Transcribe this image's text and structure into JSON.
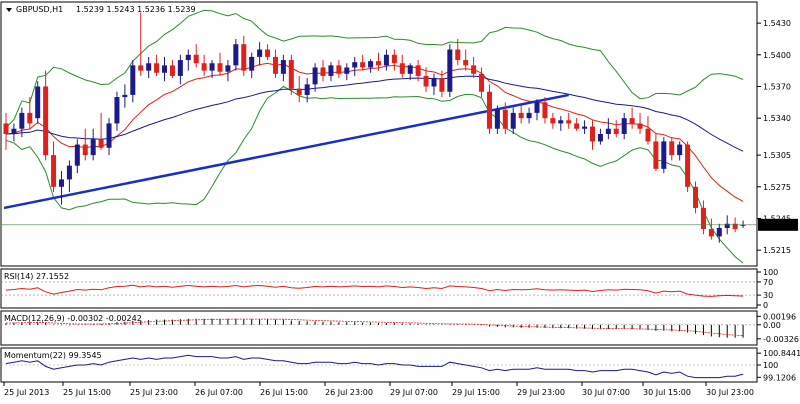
{
  "chart_data": [
    {
      "type": "candlestick",
      "title": "GBPUSD,H1",
      "ohlc_readout": [
        "1.5239",
        "1.5243",
        "1.5236",
        "1.5239"
      ],
      "y_ticks": [
        "1.5430",
        "1.5400",
        "1.5370",
        "1.5340",
        "1.5305",
        "1.5275",
        "1.5245",
        "1.5215"
      ],
      "ylim": [
        1.52,
        1.545
      ],
      "current_price": 1.5239,
      "current_price_label": "1.5239",
      "colors": {
        "up": "#1a1a8c",
        "down": "#e0201a",
        "bands": "#2e8b2e",
        "ma_red": "#e0201a",
        "ma_blue": "#1a1a8c",
        "trendline": "#1a2ec8",
        "price_line": "#4a7a4a"
      },
      "candles": [
        {
          "o": 1.5335,
          "h": 1.5345,
          "l": 1.531,
          "c": 1.5325
        },
        {
          "o": 1.5325,
          "h": 1.5335,
          "l": 1.5318,
          "c": 1.533
        },
        {
          "o": 1.533,
          "h": 1.535,
          "l": 1.5322,
          "c": 1.5345
        },
        {
          "o": 1.5345,
          "h": 1.536,
          "l": 1.533,
          "c": 1.5335
        },
        {
          "o": 1.534,
          "h": 1.5375,
          "l": 1.5335,
          "c": 1.537
        },
        {
          "o": 1.537,
          "h": 1.5385,
          "l": 1.53,
          "c": 1.5305
        },
        {
          "o": 1.5305,
          "h": 1.5318,
          "l": 1.527,
          "c": 1.5275
        },
        {
          "o": 1.5275,
          "h": 1.529,
          "l": 1.5258,
          "c": 1.5282
        },
        {
          "o": 1.5282,
          "h": 1.53,
          "l": 1.527,
          "c": 1.5295
        },
        {
          "o": 1.5295,
          "h": 1.532,
          "l": 1.5288,
          "c": 1.5315
        },
        {
          "o": 1.5315,
          "h": 1.533,
          "l": 1.53,
          "c": 1.5305
        },
        {
          "o": 1.5305,
          "h": 1.533,
          "l": 1.53,
          "c": 1.532
        },
        {
          "o": 1.532,
          "h": 1.5345,
          "l": 1.531,
          "c": 1.5312
        },
        {
          "o": 1.5312,
          "h": 1.534,
          "l": 1.5305,
          "c": 1.5335
        },
        {
          "o": 1.5335,
          "h": 1.5365,
          "l": 1.5328,
          "c": 1.536
        },
        {
          "o": 1.536,
          "h": 1.5372,
          "l": 1.535,
          "c": 1.5362
        },
        {
          "o": 1.5362,
          "h": 1.5395,
          "l": 1.5355,
          "c": 1.539
        },
        {
          "o": 1.539,
          "h": 1.544,
          "l": 1.538,
          "c": 1.5385
        },
        {
          "o": 1.5385,
          "h": 1.5398,
          "l": 1.5378,
          "c": 1.5392
        },
        {
          "o": 1.5392,
          "h": 1.54,
          "l": 1.538,
          "c": 1.5383
        },
        {
          "o": 1.5383,
          "h": 1.5398,
          "l": 1.5375,
          "c": 1.539
        },
        {
          "o": 1.539,
          "h": 1.5395,
          "l": 1.5378,
          "c": 1.538
        },
        {
          "o": 1.538,
          "h": 1.54,
          "l": 1.5372,
          "c": 1.5395
        },
        {
          "o": 1.5395,
          "h": 1.5405,
          "l": 1.5385,
          "c": 1.54
        },
        {
          "o": 1.54,
          "h": 1.541,
          "l": 1.5388,
          "c": 1.5392
        },
        {
          "o": 1.5392,
          "h": 1.54,
          "l": 1.538,
          "c": 1.5385
        },
        {
          "o": 1.5385,
          "h": 1.5395,
          "l": 1.5378,
          "c": 1.5392
        },
        {
          "o": 1.5392,
          "h": 1.5402,
          "l": 1.538,
          "c": 1.5384
        },
        {
          "o": 1.5384,
          "h": 1.5395,
          "l": 1.5375,
          "c": 1.539
        },
        {
          "o": 1.539,
          "h": 1.5415,
          "l": 1.5385,
          "c": 1.541
        },
        {
          "o": 1.541,
          "h": 1.5418,
          "l": 1.538,
          "c": 1.5385
        },
        {
          "o": 1.5385,
          "h": 1.5402,
          "l": 1.5378,
          "c": 1.5398
        },
        {
          "o": 1.5398,
          "h": 1.5412,
          "l": 1.539,
          "c": 1.5405
        },
        {
          "o": 1.5405,
          "h": 1.541,
          "l": 1.5395,
          "c": 1.5398
        },
        {
          "o": 1.5398,
          "h": 1.5405,
          "l": 1.5378,
          "c": 1.5382
        },
        {
          "o": 1.5382,
          "h": 1.54,
          "l": 1.5375,
          "c": 1.5395
        },
        {
          "o": 1.5395,
          "h": 1.54,
          "l": 1.5362,
          "c": 1.5368
        },
        {
          "o": 1.5368,
          "h": 1.538,
          "l": 1.5355,
          "c": 1.5362
        },
        {
          "o": 1.5362,
          "h": 1.5378,
          "l": 1.5355,
          "c": 1.5372
        },
        {
          "o": 1.5372,
          "h": 1.5392,
          "l": 1.5365,
          "c": 1.5388
        },
        {
          "o": 1.5388,
          "h": 1.5395,
          "l": 1.5375,
          "c": 1.538
        },
        {
          "o": 1.538,
          "h": 1.5393,
          "l": 1.5375,
          "c": 1.539
        },
        {
          "o": 1.539,
          "h": 1.5395,
          "l": 1.5378,
          "c": 1.5382
        },
        {
          "o": 1.5382,
          "h": 1.5392,
          "l": 1.5376,
          "c": 1.5388
        },
        {
          "o": 1.5388,
          "h": 1.5398,
          "l": 1.538,
          "c": 1.5393
        },
        {
          "o": 1.5393,
          "h": 1.54,
          "l": 1.5385,
          "c": 1.5388
        },
        {
          "o": 1.5388,
          "h": 1.5396,
          "l": 1.5383,
          "c": 1.5394
        },
        {
          "o": 1.5394,
          "h": 1.5402,
          "l": 1.5385,
          "c": 1.539
        },
        {
          "o": 1.539,
          "h": 1.5405,
          "l": 1.5385,
          "c": 1.54
        },
        {
          "o": 1.54,
          "h": 1.5405,
          "l": 1.5385,
          "c": 1.5392
        },
        {
          "o": 1.5392,
          "h": 1.54,
          "l": 1.5378,
          "c": 1.5382
        },
        {
          "o": 1.5382,
          "h": 1.5392,
          "l": 1.5376,
          "c": 1.539
        },
        {
          "o": 1.539,
          "h": 1.5395,
          "l": 1.5375,
          "c": 1.538
        },
        {
          "o": 1.538,
          "h": 1.5388,
          "l": 1.5365,
          "c": 1.537
        },
        {
          "o": 1.537,
          "h": 1.5382,
          "l": 1.5362,
          "c": 1.5378
        },
        {
          "o": 1.5378,
          "h": 1.5385,
          "l": 1.536,
          "c": 1.5365
        },
        {
          "o": 1.5365,
          "h": 1.541,
          "l": 1.536,
          "c": 1.5405
        },
        {
          "o": 1.5405,
          "h": 1.5415,
          "l": 1.539,
          "c": 1.5395
        },
        {
          "o": 1.5395,
          "h": 1.5405,
          "l": 1.5385,
          "c": 1.539
        },
        {
          "o": 1.539,
          "h": 1.5398,
          "l": 1.5378,
          "c": 1.5382
        },
        {
          "o": 1.5382,
          "h": 1.5388,
          "l": 1.536,
          "c": 1.5365
        },
        {
          "o": 1.5365,
          "h": 1.5372,
          "l": 1.5325,
          "c": 1.533
        },
        {
          "o": 1.533,
          "h": 1.5352,
          "l": 1.5325,
          "c": 1.5348
        },
        {
          "o": 1.5348,
          "h": 1.5355,
          "l": 1.5325,
          "c": 1.533
        },
        {
          "o": 1.533,
          "h": 1.535,
          "l": 1.5325,
          "c": 1.5345
        },
        {
          "o": 1.5345,
          "h": 1.5352,
          "l": 1.5335,
          "c": 1.534
        },
        {
          "o": 1.534,
          "h": 1.535,
          "l": 1.5335,
          "c": 1.5345
        },
        {
          "o": 1.5345,
          "h": 1.5358,
          "l": 1.5338,
          "c": 1.5355
        },
        {
          "o": 1.5355,
          "h": 1.536,
          "l": 1.5335,
          "c": 1.534
        },
        {
          "o": 1.534,
          "h": 1.5345,
          "l": 1.533,
          "c": 1.5335
        },
        {
          "o": 1.5335,
          "h": 1.5342,
          "l": 1.5328,
          "c": 1.5338
        },
        {
          "o": 1.5338,
          "h": 1.5345,
          "l": 1.533,
          "c": 1.5335
        },
        {
          "o": 1.5335,
          "h": 1.534,
          "l": 1.5328,
          "c": 1.533
        },
        {
          "o": 1.533,
          "h": 1.5338,
          "l": 1.5325,
          "c": 1.5332
        },
        {
          "o": 1.5332,
          "h": 1.5338,
          "l": 1.531,
          "c": 1.5318
        },
        {
          "o": 1.5318,
          "h": 1.533,
          "l": 1.5315,
          "c": 1.5325
        },
        {
          "o": 1.5325,
          "h": 1.534,
          "l": 1.532,
          "c": 1.533
        },
        {
          "o": 1.533,
          "h": 1.5338,
          "l": 1.5322,
          "c": 1.5325
        },
        {
          "o": 1.5325,
          "h": 1.5345,
          "l": 1.532,
          "c": 1.534
        },
        {
          "o": 1.534,
          "h": 1.535,
          "l": 1.533,
          "c": 1.5335
        },
        {
          "o": 1.5335,
          "h": 1.5345,
          "l": 1.5325,
          "c": 1.533
        },
        {
          "o": 1.533,
          "h": 1.5342,
          "l": 1.5315,
          "c": 1.5318
        },
        {
          "o": 1.5318,
          "h": 1.5325,
          "l": 1.529,
          "c": 1.5292
        },
        {
          "o": 1.5292,
          "h": 1.5322,
          "l": 1.5288,
          "c": 1.5318
        },
        {
          "o": 1.5318,
          "h": 1.5322,
          "l": 1.53,
          "c": 1.5305
        },
        {
          "o": 1.5305,
          "h": 1.5318,
          "l": 1.53,
          "c": 1.5315
        },
        {
          "o": 1.5315,
          "h": 1.5318,
          "l": 1.527,
          "c": 1.5275
        },
        {
          "o": 1.5275,
          "h": 1.528,
          "l": 1.525,
          "c": 1.5255
        },
        {
          "o": 1.5255,
          "h": 1.5262,
          "l": 1.523,
          "c": 1.5235
        },
        {
          "o": 1.5235,
          "h": 1.5245,
          "l": 1.5225,
          "c": 1.5228
        },
        {
          "o": 1.5228,
          "h": 1.524,
          "l": 1.5222,
          "c": 1.5236
        },
        {
          "o": 1.5236,
          "h": 1.5248,
          "l": 1.523,
          "c": 1.524
        },
        {
          "o": 1.524,
          "h": 1.5246,
          "l": 1.5232,
          "c": 1.5235
        },
        {
          "o": 1.5239,
          "h": 1.5243,
          "l": 1.5236,
          "c": 1.5239
        }
      ]
    },
    {
      "type": "line",
      "title": "RSI(14) 27.1552",
      "y_ticks": [
        "100",
        "70",
        "30",
        "0"
      ],
      "ylim": [
        0,
        100
      ],
      "values": [
        45,
        47,
        50,
        48,
        52,
        40,
        33,
        38,
        42,
        47,
        45,
        48,
        46,
        52,
        56,
        57,
        60,
        55,
        58,
        55,
        57,
        54,
        57,
        59,
        57,
        55,
        57,
        55,
        56,
        59,
        55,
        58,
        59,
        57,
        54,
        57,
        52,
        51,
        53,
        56,
        55,
        57,
        55,
        56,
        58,
        56,
        57,
        55,
        58,
        56,
        53,
        55,
        53,
        50,
        52,
        50,
        58,
        56,
        55,
        53,
        50,
        43,
        47,
        44,
        47,
        46,
        47,
        49,
        46,
        45,
        46,
        45,
        44,
        45,
        41,
        44,
        46,
        45,
        48,
        47,
        46,
        43,
        36,
        42,
        40,
        42,
        33,
        30,
        27,
        26,
        28,
        29,
        28,
        27
      ]
    },
    {
      "type": "bar",
      "title": "MACD(12,26,9) -0.00302 -0.00242",
      "y_ticks": [
        "0.00196",
        "0.00",
        "-0.00326"
      ],
      "ylim": [
        -0.004,
        0.0025
      ],
      "values": [
        0.0004,
        0.0005,
        0.0006,
        0.0006,
        0.0007,
        0.0004,
        0.0001,
        -0.0001,
        -0.0001,
        0.0,
        0.0001,
        0.0002,
        0.0002,
        0.0004,
        0.0006,
        0.0007,
        0.0009,
        0.001,
        0.0011,
        0.0012,
        0.0012,
        0.0012,
        0.0013,
        0.0014,
        0.0014,
        0.0014,
        0.0014,
        0.0014,
        0.0014,
        0.0014,
        0.0013,
        0.0013,
        0.0013,
        0.0013,
        0.0012,
        0.0012,
        0.001,
        0.0009,
        0.0008,
        0.0008,
        0.0007,
        0.0007,
        0.0006,
        0.0006,
        0.0006,
        0.0005,
        0.0005,
        0.0004,
        0.0004,
        0.0004,
        0.0003,
        0.0003,
        0.0002,
        0.0001,
        0.0001,
        0.0,
        0.0001,
        0.0001,
        0.0001,
        0.0,
        -0.0001,
        -0.0004,
        -0.0005,
        -0.0006,
        -0.0006,
        -0.0007,
        -0.0007,
        -0.0007,
        -0.0007,
        -0.0008,
        -0.0008,
        -0.0008,
        -0.0009,
        -0.0009,
        -0.001,
        -0.001,
        -0.001,
        -0.001,
        -0.001,
        -0.001,
        -0.0011,
        -0.0012,
        -0.0014,
        -0.0014,
        -0.0015,
        -0.0015,
        -0.0018,
        -0.0021,
        -0.0024,
        -0.0027,
        -0.0029,
        -0.003,
        -0.003,
        -0.003
      ]
    },
    {
      "type": "line",
      "title": "Momentum(22) 99.3545",
      "y_ticks": [
        "100.8441",
        "100",
        "99.1206"
      ],
      "ylim": [
        99.0,
        101.0
      ],
      "values": [
        100.1,
        100.2,
        100.3,
        100.2,
        100.3,
        99.9,
        99.7,
        99.8,
        99.9,
        100.0,
        100.0,
        100.1,
        100.0,
        100.2,
        100.3,
        100.4,
        100.5,
        100.4,
        100.5,
        100.4,
        100.5,
        100.5,
        100.6,
        100.7,
        100.6,
        100.6,
        100.6,
        100.5,
        100.5,
        100.6,
        100.4,
        100.5,
        100.5,
        100.4,
        100.3,
        100.3,
        100.2,
        100.1,
        100.1,
        100.2,
        100.2,
        100.2,
        100.1,
        100.1,
        100.2,
        100.1,
        100.1,
        100.0,
        100.1,
        100.1,
        100.0,
        100.0,
        99.9,
        99.9,
        99.9,
        99.9,
        100.2,
        100.1,
        100.0,
        99.9,
        99.8,
        99.6,
        99.7,
        99.6,
        99.7,
        99.7,
        99.7,
        99.8,
        99.7,
        99.7,
        99.7,
        99.7,
        99.6,
        99.6,
        99.5,
        99.6,
        99.6,
        99.6,
        99.7,
        99.7,
        99.6,
        99.5,
        99.3,
        99.5,
        99.4,
        99.5,
        99.2,
        99.1,
        99.1,
        99.1,
        99.1,
        99.2,
        99.2,
        99.35
      ]
    }
  ],
  "x_ticks": [
    "25 Jul 2013",
    "25 Jul 15:00",
    "25 Jul 23:00",
    "26 Jul 07:00",
    "26 Jul 15:00",
    "26 Jul 23:00",
    "29 Jul 07:00",
    "29 Jul 15:00",
    "29 Jul 23:00",
    "30 Jul 07:00",
    "30 Jul 15:00",
    "30 Jul 23:00"
  ]
}
